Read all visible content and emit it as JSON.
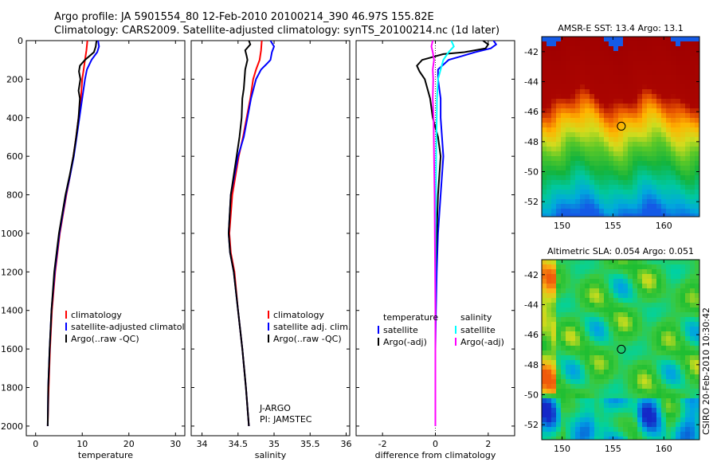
{
  "title_line1": "Argo profile: JA 5901554_80 12-Feb-2010 20100214_390 46.97S 155.82E",
  "title_line2": "Climatology: CARS2009. Satellite-adjusted climatology: synTS_20100214.nc (1d later)",
  "side_text": "CSIRO 20-Feb-2010 10:30:42",
  "colors": {
    "red": "#ff0000",
    "blue": "#0000ff",
    "black": "#000000",
    "cyan": "#00ffff",
    "magenta": "#ff00ff"
  },
  "chart_data": [
    {
      "type": "line",
      "xlabel": "temperature",
      "xlim": [
        -2,
        32
      ],
      "ylim": [
        2050,
        0
      ],
      "xticks": [
        0,
        10,
        20,
        30
      ],
      "yticks": [
        0,
        200,
        400,
        600,
        800,
        1000,
        1200,
        1400,
        1600,
        1800,
        2000
      ],
      "legend": [
        "climatology",
        "satellite-adjusted climatology",
        "Argo(..raw -QC)"
      ],
      "legend_position": "bottom-center",
      "series": [
        {
          "color": "red",
          "depth": [
            0,
            50,
            100,
            150,
            200,
            300,
            400,
            500,
            600,
            700,
            800,
            1000,
            1200,
            1400,
            1600,
            1800,
            2000
          ],
          "values": [
            11.1,
            10.9,
            10.6,
            10.3,
            10.0,
            9.7,
            9.2,
            8.7,
            8.1,
            7.4,
            6.6,
            5.2,
            4.2,
            3.5,
            3.1,
            2.8,
            2.6
          ]
        },
        {
          "color": "blue",
          "depth": [
            0,
            30,
            60,
            100,
            150,
            200,
            300,
            400,
            500,
            600,
            700,
            800,
            1000,
            1200,
            1400,
            1600,
            1800,
            2000
          ],
          "values": [
            13.4,
            13.6,
            13.2,
            12.0,
            11.0,
            10.6,
            10.0,
            9.4,
            8.8,
            8.2,
            7.4,
            6.5,
            5.1,
            4.1,
            3.4,
            3.0,
            2.7,
            2.6
          ]
        },
        {
          "color": "black",
          "depth": [
            0,
            10,
            30,
            60,
            100,
            130,
            160,
            200,
            260,
            300,
            400,
            500,
            600,
            700,
            800,
            1000,
            1200,
            1400,
            1600,
            1800,
            2000
          ],
          "values": [
            13.1,
            13.0,
            12.9,
            12.5,
            10.6,
            9.5,
            9.3,
            9.6,
            9.2,
            9.5,
            9.2,
            8.7,
            8.1,
            7.3,
            6.4,
            5.0,
            4.0,
            3.4,
            3.0,
            2.7,
            2.6
          ]
        }
      ]
    },
    {
      "type": "line",
      "xlabel": "salinity",
      "xlim": [
        33.85,
        36.05
      ],
      "ylim": [
        2050,
        0
      ],
      "xticks": [
        34,
        34.5,
        35,
        35.5,
        36
      ],
      "legend": [
        "climatology",
        "satellite adj. clim.",
        "Argo(..raw -QC)"
      ],
      "legend_position": "bottom-center",
      "annotation": [
        "J-ARGO",
        "PI: JAMSTEC"
      ],
      "series": [
        {
          "color": "red",
          "depth": [
            0,
            50,
            100,
            150,
            200,
            300,
            400,
            500,
            600,
            800,
            1000,
            1100,
            1200,
            1400,
            1600,
            1800,
            2000
          ],
          "values": [
            34.83,
            34.82,
            34.8,
            34.75,
            34.71,
            34.67,
            34.62,
            34.57,
            34.51,
            34.42,
            34.38,
            34.4,
            34.45,
            34.5,
            34.56,
            34.61,
            34.65
          ]
        },
        {
          "color": "blue",
          "depth": [
            0,
            30,
            60,
            100,
            120,
            150,
            200,
            300,
            400,
            500,
            600,
            800,
            1000,
            1100,
            1200,
            1400,
            1600,
            1800,
            2000
          ],
          "values": [
            34.95,
            35.0,
            34.97,
            34.95,
            34.9,
            34.82,
            34.75,
            34.68,
            34.63,
            34.58,
            34.5,
            34.4,
            34.37,
            34.39,
            34.44,
            34.5,
            34.56,
            34.61,
            34.65
          ]
        },
        {
          "color": "black",
          "depth": [
            0,
            20,
            50,
            80,
            100,
            150,
            200,
            250,
            300,
            400,
            500,
            600,
            800,
            1000,
            1100,
            1200,
            1400,
            1600,
            1800,
            2000
          ],
          "values": [
            34.65,
            34.67,
            34.6,
            34.62,
            34.63,
            34.6,
            34.59,
            34.58,
            34.56,
            34.55,
            34.52,
            34.48,
            34.4,
            34.37,
            34.39,
            34.44,
            34.5,
            34.56,
            34.61,
            34.65
          ]
        }
      ]
    },
    {
      "type": "line",
      "xlabel": "difference from climatology",
      "xlim": [
        -3,
        3
      ],
      "ylim": [
        2050,
        0
      ],
      "xticks": [
        -2,
        0,
        2
      ],
      "legend_columns": [
        {
          "header": "temperature",
          "items": [
            "satellite",
            "Argo(-adj)"
          ]
        },
        {
          "header": "salinity",
          "items": [
            "satellite",
            "Argo(-adj)"
          ]
        }
      ],
      "legend_position": "bottom-center",
      "series": [
        {
          "color": "blue",
          "depth": [
            0,
            20,
            40,
            60,
            80,
            100,
            150,
            200,
            300,
            400,
            600,
            800,
            1000,
            1200,
            1400,
            1600,
            1800,
            2000
          ],
          "values": [
            2.2,
            2.3,
            2.1,
            1.5,
            1.0,
            0.5,
            0.1,
            0.1,
            0.2,
            0.2,
            0.3,
            0.2,
            0.1,
            0.05,
            0.02,
            0.0,
            0.0,
            0.0
          ]
        },
        {
          "color": "black",
          "depth": [
            0,
            20,
            40,
            60,
            70,
            100,
            130,
            160,
            200,
            300,
            400,
            500,
            600,
            800,
            1000,
            1200,
            1400,
            1600,
            1800,
            2000
          ],
          "values": [
            1.8,
            2.0,
            1.9,
            1.1,
            0.3,
            -0.5,
            -0.7,
            -0.6,
            -0.4,
            -0.2,
            -0.1,
            0.1,
            0.2,
            0.1,
            0.05,
            0.0,
            0.0,
            0.0,
            0.0,
            0.0
          ]
        },
        {
          "color": "cyan",
          "depth": [
            0,
            30,
            60,
            100,
            150,
            200,
            300,
            400,
            500,
            600,
            800,
            1000,
            1200,
            1400,
            1600,
            1800,
            2000
          ],
          "values": [
            0.6,
            0.7,
            0.5,
            0.3,
            0.2,
            0.1,
            0.06,
            0.05,
            0.04,
            0.03,
            0.02,
            0.01,
            0.0,
            0.0,
            0.0,
            0.0,
            0.0
          ]
        },
        {
          "color": "magenta",
          "depth": [
            0,
            30,
            60,
            100,
            150,
            200,
            300,
            400,
            500,
            600,
            800,
            1000,
            1200,
            1400,
            1600,
            1800,
            2000
          ],
          "values": [
            -0.1,
            -0.15,
            -0.1,
            -0.05,
            -0.1,
            -0.08,
            -0.1,
            -0.07,
            -0.06,
            -0.05,
            -0.03,
            -0.02,
            -0.01,
            0.0,
            0.0,
            0.0,
            0.0
          ]
        }
      ]
    },
    {
      "type": "heatmap",
      "title": "AMSR-E SST: 13.4  Argo: 13.1",
      "xlim": [
        148,
        163.5
      ],
      "ylim": [
        -53,
        -41
      ],
      "xticks": [
        150,
        155,
        160
      ],
      "yticks": [
        -42,
        -44,
        -46,
        -48,
        -50,
        -52
      ],
      "marker": {
        "lon": 155.82,
        "lat": -46.97
      }
    },
    {
      "type": "heatmap",
      "title": "Altimetric SLA: 0.054  Argo: 0.051",
      "xlim": [
        148,
        163.5
      ],
      "ylim": [
        -53,
        -41
      ],
      "xticks": [
        150,
        155,
        160
      ],
      "yticks": [
        -42,
        -44,
        -46,
        -48,
        -50,
        -52
      ],
      "marker": {
        "lon": 155.82,
        "lat": -46.97
      }
    }
  ]
}
